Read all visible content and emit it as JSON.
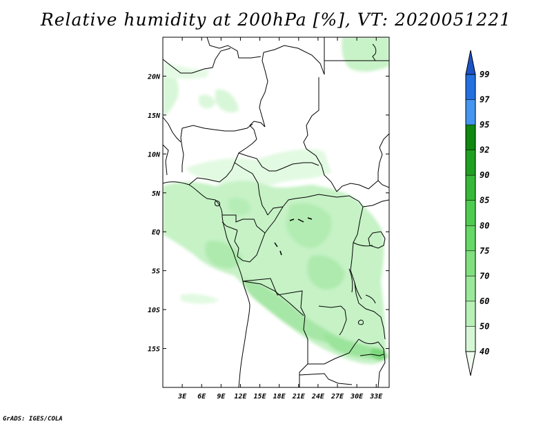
{
  "title": "Relative humidity at 200hPa [%], VT: 2020051221",
  "credit": "GrADS: IGES/COLA",
  "map": {
    "lon_range": [
      0,
      35
    ],
    "lat_range": [
      -20,
      25
    ],
    "lon_ticks": [
      {
        "lon": 3,
        "label": "3E"
      },
      {
        "lon": 6,
        "label": "6E"
      },
      {
        "lon": 9,
        "label": "9E"
      },
      {
        "lon": 12,
        "label": "12E"
      },
      {
        "lon": 15,
        "label": "15E"
      },
      {
        "lon": 18,
        "label": "18E"
      },
      {
        "lon": 21,
        "label": "21E"
      },
      {
        "lon": 24,
        "label": "24E"
      },
      {
        "lon": 27,
        "label": "27E"
      },
      {
        "lon": 30,
        "label": "30E"
      },
      {
        "lon": 33,
        "label": "33E"
      }
    ],
    "lat_ticks": [
      {
        "lat": 20,
        "label": "20N"
      },
      {
        "lat": 15,
        "label": "15N"
      },
      {
        "lat": 10,
        "label": "10N"
      },
      {
        "lat": 5,
        "label": "5N"
      },
      {
        "lat": 0,
        "label": "EQ"
      },
      {
        "lat": -5,
        "label": "5S"
      },
      {
        "lat": -10,
        "label": "10S"
      },
      {
        "lat": -15,
        "label": "15S"
      }
    ]
  },
  "legend": {
    "levels": [
      "40",
      "50",
      "60",
      "70",
      "75",
      "80",
      "85",
      "90",
      "92",
      "95",
      "97",
      "99"
    ],
    "colors": [
      "#f0fcf0",
      "#d5f7d5",
      "#b8f0b8",
      "#9be89b",
      "#80e080",
      "#66d866",
      "#4fcc4f",
      "#38b838",
      "#20a020",
      "#108810",
      "#4496f0",
      "#2470e0",
      "#1c54c8"
    ]
  }
}
